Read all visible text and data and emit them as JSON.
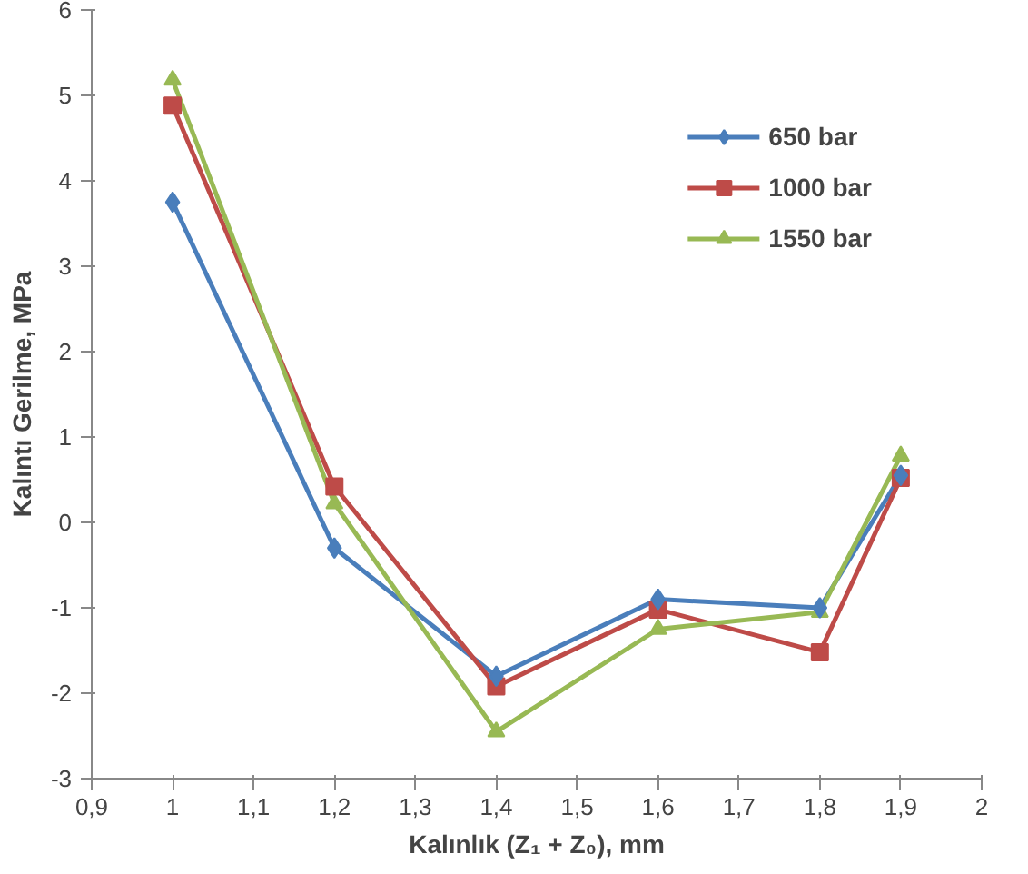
{
  "chart_data": {
    "type": "line",
    "xlabel": "Kalınlık (Z₁ + Z₀), mm",
    "ylabel": "Kalıntı Gerilme, MPa",
    "x": [
      1,
      1.2,
      1.4,
      1.6,
      1.8,
      1.9
    ],
    "series": [
      {
        "name": "650 bar",
        "color": "#4a7ebb",
        "marker": "diamond",
        "values": [
          3.75,
          -0.3,
          -1.8,
          -0.9,
          -1.0,
          0.55
        ]
      },
      {
        "name": "1000 bar",
        "color": "#be4b48",
        "marker": "square",
        "values": [
          4.88,
          0.42,
          -1.92,
          -1.02,
          -1.52,
          0.52
        ]
      },
      {
        "name": "1550 bar",
        "color": "#98b954",
        "marker": "triangle",
        "values": [
          5.18,
          0.22,
          -2.45,
          -1.25,
          -1.05,
          0.78
        ]
      }
    ],
    "xlim": [
      0.9,
      2
    ],
    "ylim": [
      -3,
      6
    ],
    "xticks": [
      {
        "value": 0.9,
        "label": "0,9"
      },
      1,
      {
        "value": 1.1,
        "label": "1,1"
      },
      {
        "value": 1.2,
        "label": "1,2"
      },
      {
        "value": 1.3,
        "label": "1,3"
      },
      {
        "value": 1.4,
        "label": "1,4"
      },
      {
        "value": 1.5,
        "label": "1,5"
      },
      {
        "value": 1.6,
        "label": "1,6"
      },
      {
        "value": 1.7,
        "label": "1,7"
      },
      {
        "value": 1.8,
        "label": "1,8"
      },
      {
        "value": 1.9,
        "label": "1,9"
      },
      2
    ],
    "yticks": [
      -3,
      -2,
      -1,
      0,
      1,
      2,
      3,
      4,
      5,
      6
    ],
    "grid": false,
    "legend": "top right",
    "line_style": "solid"
  }
}
